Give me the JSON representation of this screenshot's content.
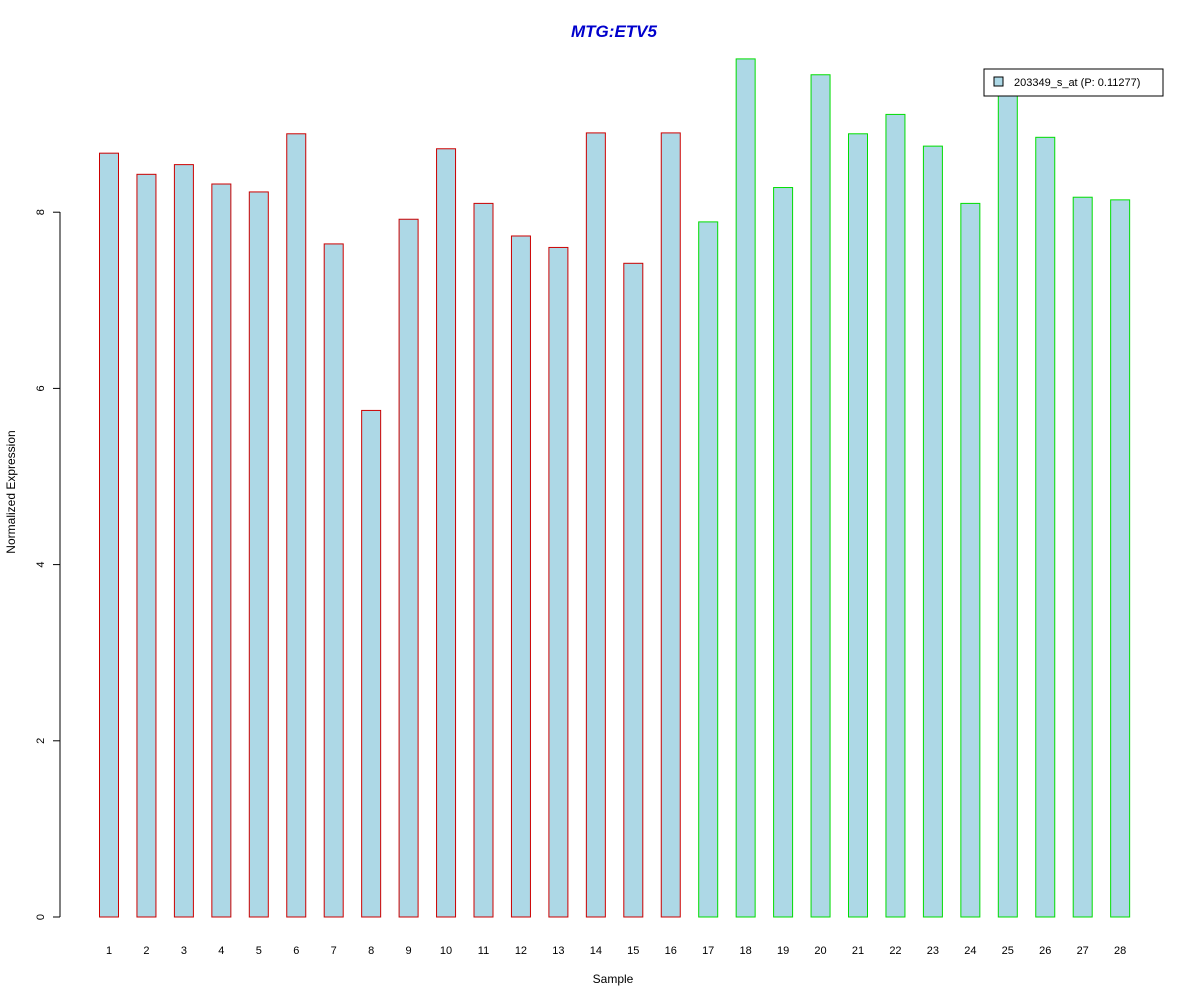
{
  "chart_data": {
    "type": "bar",
    "title": "MTG:ETV5",
    "xlabel": "Sample",
    "ylabel": "Normalized Expression",
    "categories": [
      "1",
      "2",
      "3",
      "4",
      "5",
      "6",
      "7",
      "8",
      "9",
      "10",
      "11",
      "12",
      "13",
      "14",
      "15",
      "16",
      "17",
      "18",
      "19",
      "20",
      "21",
      "22",
      "23",
      "24",
      "25",
      "26",
      "27",
      "28"
    ],
    "values": [
      8.67,
      8.43,
      8.54,
      8.32,
      8.23,
      8.89,
      7.64,
      5.75,
      7.92,
      8.72,
      8.1,
      7.73,
      7.6,
      8.9,
      7.42,
      8.9,
      7.89,
      9.74,
      8.28,
      9.56,
      8.89,
      9.11,
      8.75,
      8.1,
      9.42,
      8.85,
      8.17,
      8.14
    ],
    "group": [
      "A",
      "A",
      "A",
      "A",
      "A",
      "A",
      "A",
      "A",
      "A",
      "A",
      "A",
      "A",
      "A",
      "A",
      "A",
      "A",
      "B",
      "B",
      "B",
      "B",
      "B",
      "B",
      "B",
      "B",
      "B",
      "B",
      "B",
      "B"
    ],
    "ylim": [
      0,
      9.8
    ],
    "yticks": [
      "0",
      "2",
      "4",
      "6",
      "8"
    ],
    "legend": {
      "position": "top-right",
      "label": "203349_s_at (P: 0.11277)"
    },
    "colors": {
      "title": "#0000cc",
      "bar_fill": "#add8e6",
      "group_a_outline": "#cc0000",
      "group_b_outline": "#00dd00",
      "axis": "#000000"
    },
    "grid": false
  }
}
